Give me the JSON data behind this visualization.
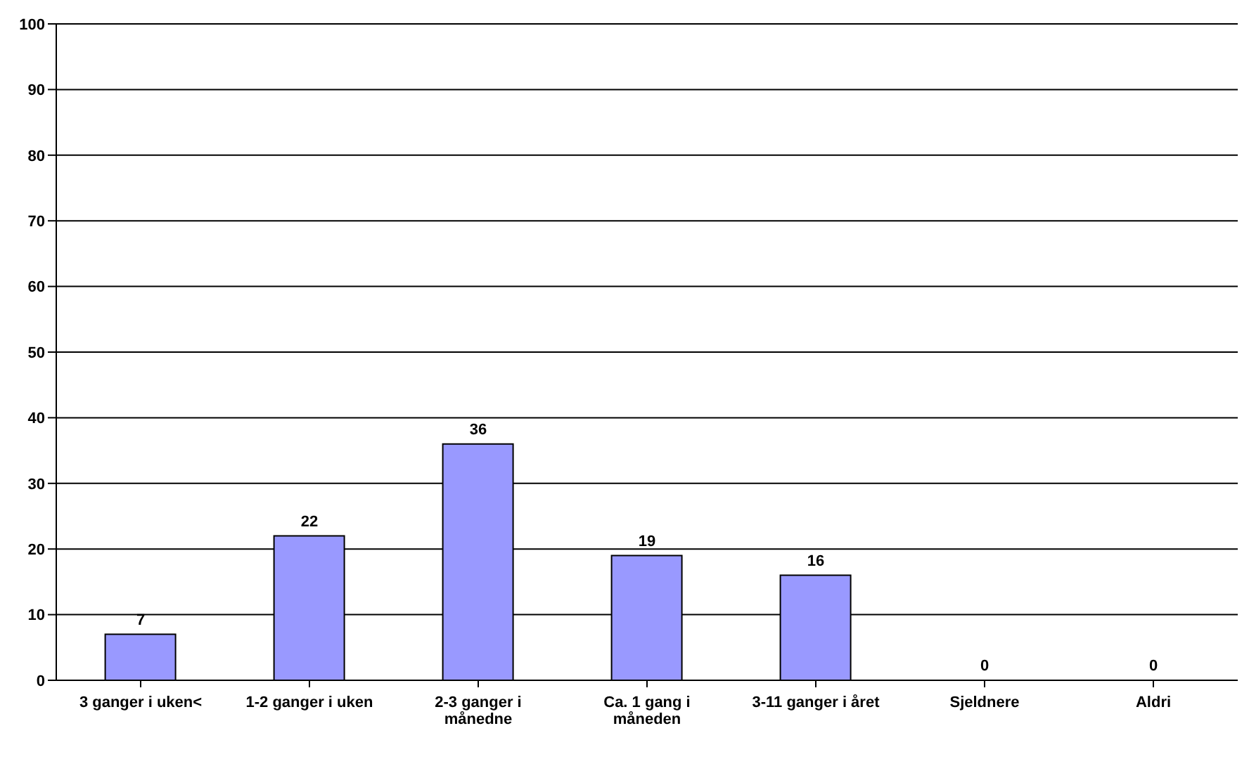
{
  "chart_data": {
    "type": "bar",
    "categories": [
      "3 ganger i uken<",
      "1-2 ganger i uken",
      "2-3 ganger i månedne",
      "Ca. 1 gang i måneden",
      "3-11 ganger i året",
      "Sjeldnere",
      "Aldri"
    ],
    "values": [
      7,
      22,
      36,
      19,
      16,
      0,
      0
    ],
    "color": "#9999ff",
    "ylim": [
      0,
      100
    ],
    "yticks": [
      0,
      10,
      20,
      30,
      40,
      50,
      60,
      70,
      80,
      90,
      100
    ],
    "grid": "y",
    "data_labels": true
  }
}
